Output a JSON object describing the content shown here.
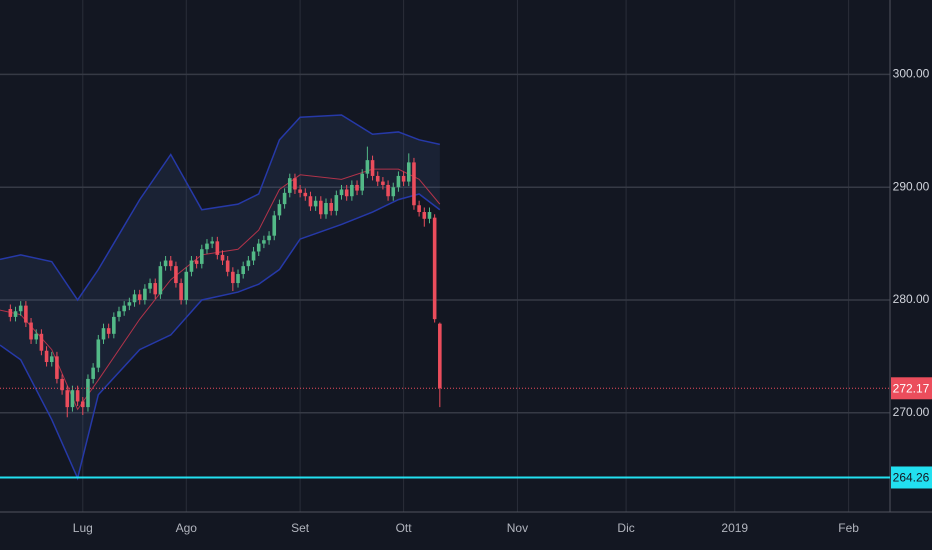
{
  "chart_data": {
    "type": "candlestick",
    "up_color": "#53b987",
    "down_color": "#eb4d5c",
    "xlim": [
      0,
      172
    ],
    "xticks": [
      {
        "value": 16,
        "label": "Lug"
      },
      {
        "value": 36,
        "label": "Ago"
      },
      {
        "value": 58,
        "label": "Set"
      },
      {
        "value": 78,
        "label": "Ott"
      },
      {
        "value": 100,
        "label": "Nov"
      },
      {
        "value": 121,
        "label": "Dic"
      },
      {
        "value": 142,
        "label": "2019"
      },
      {
        "value": 164,
        "label": "Feb"
      }
    ],
    "ylim": [
      261.2,
      306.6
    ],
    "yticks": [
      {
        "value": 270,
        "label": "270.00"
      },
      {
        "value": 280,
        "label": "280.00"
      },
      {
        "value": 290,
        "label": "290.00"
      },
      {
        "value": 300,
        "label": "300.00"
      }
    ],
    "grid": true,
    "x": [
      2,
      3,
      4,
      5,
      6,
      7,
      8,
      9,
      10,
      11,
      12,
      13,
      14,
      15,
      16,
      17,
      18,
      19,
      20,
      21,
      22,
      23,
      24,
      25,
      26,
      27,
      28,
      29,
      30,
      31,
      32,
      33,
      34,
      35,
      36,
      37,
      38,
      39,
      40,
      41,
      42,
      43,
      44,
      45,
      46,
      47,
      48,
      49,
      50,
      51,
      52,
      53,
      54,
      55,
      56,
      57,
      58,
      59,
      60,
      61,
      62,
      63,
      64,
      65,
      66,
      67,
      68,
      69,
      70,
      71,
      72,
      73,
      74,
      75,
      76,
      77,
      78,
      79,
      80,
      81,
      82,
      83,
      84,
      85
    ],
    "open": [
      279.2,
      278.5,
      279,
      279.5,
      278,
      276.5,
      277,
      275.5,
      274.5,
      275,
      273,
      272,
      270.5,
      272,
      271,
      270.5,
      273,
      274,
      276.5,
      277.5,
      277,
      278.5,
      279,
      279.5,
      279.8,
      280.5,
      280,
      281,
      281.5,
      280.5,
      283,
      283.5,
      283,
      281.5,
      280,
      282.5,
      283.5,
      283.2,
      284.5,
      285,
      285.2,
      284,
      283.5,
      282.5,
      281.5,
      282.3,
      283,
      283.5,
      284.3,
      285,
      285.3,
      285.7,
      287.5,
      288.5,
      289.5,
      290.8,
      289.8,
      289.5,
      289.2,
      288.3,
      288.8,
      287.6,
      288.6,
      287.9,
      289.3,
      289.8,
      289.2,
      290.2,
      289.7,
      291.2,
      292.4,
      291,
      290.5,
      290.2,
      289.2,
      290,
      291,
      290.5,
      292.2,
      288.4,
      287.8,
      287.2,
      287.3,
      277.9
    ],
    "high": [
      279.6,
      279.4,
      279.9,
      279.9,
      278.4,
      277.4,
      277.4,
      275.9,
      275.4,
      275.4,
      273.4,
      272.4,
      272.4,
      272.4,
      271.4,
      273.4,
      274.4,
      276.9,
      277.9,
      277.9,
      278.9,
      279.4,
      279.9,
      280.2,
      280.9,
      280.9,
      281.4,
      281.9,
      281.9,
      283.4,
      283.9,
      283.9,
      283.4,
      281.9,
      282.9,
      283.9,
      283.9,
      284.9,
      285.4,
      285.6,
      285.6,
      284.4,
      283.9,
      282.9,
      282.7,
      283.4,
      283.9,
      284.7,
      285.4,
      285.7,
      286.1,
      287.9,
      288.9,
      289.9,
      291.2,
      291.2,
      290.2,
      289.9,
      289.6,
      289.2,
      289.2,
      289,
      289,
      289.7,
      290.2,
      290.2,
      290.6,
      290.6,
      291.6,
      293.6,
      292.8,
      291.4,
      290.9,
      290.6,
      290.4,
      291.4,
      291.4,
      293,
      292.6,
      288.8,
      288.2,
      288.2,
      287.6,
      278
    ],
    "low": [
      278.1,
      278.1,
      278.6,
      277.6,
      276.1,
      276.1,
      275.1,
      274.1,
      274.1,
      272.6,
      271.6,
      269.6,
      270.1,
      270.6,
      269.8,
      270.1,
      272.6,
      273.6,
      276.1,
      276.6,
      276.6,
      278.1,
      278.6,
      279.1,
      279.4,
      279.6,
      279.6,
      280.6,
      280.1,
      280.1,
      282.6,
      282.6,
      281.1,
      279.6,
      279.6,
      282.1,
      282.8,
      282.8,
      284.1,
      284.6,
      283.6,
      283.1,
      282.1,
      280.8,
      281.1,
      281.9,
      282.6,
      283.1,
      283.9,
      284.6,
      284.9,
      285.3,
      287.1,
      288.1,
      289.1,
      289.4,
      289.1,
      288.8,
      287.9,
      287.9,
      287.2,
      287.2,
      287.5,
      287.5,
      288.9,
      288.8,
      288.8,
      289.3,
      289.3,
      290.8,
      290.6,
      290.1,
      289.8,
      288.8,
      288.8,
      289.6,
      290.1,
      290.1,
      288,
      287.4,
      286.5,
      286.8,
      278,
      270.5
    ],
    "close": [
      278.5,
      279,
      279.5,
      278,
      276.5,
      277,
      275.5,
      274.5,
      275,
      273,
      272,
      270.5,
      272,
      271,
      270.5,
      273,
      274,
      276.5,
      277.5,
      277,
      278.5,
      279,
      279.5,
      279.8,
      280.5,
      280,
      281,
      281.5,
      280.5,
      283,
      283.5,
      283,
      281.5,
      280,
      282.5,
      283.5,
      283.2,
      284.5,
      285,
      285.2,
      284,
      283.5,
      282.5,
      281.5,
      282.3,
      283,
      283.5,
      284.3,
      285,
      285.3,
      285.7,
      287.5,
      288.5,
      289.5,
      290.8,
      289.8,
      289.5,
      289.2,
      288.3,
      288.8,
      287.6,
      288.6,
      287.9,
      289.3,
      289.8,
      289.2,
      290.2,
      289.7,
      291.2,
      292.4,
      291,
      290.5,
      290.2,
      289.2,
      290,
      291,
      290.5,
      292.2,
      288.4,
      287.8,
      287.2,
      287.8,
      278.3,
      272.17
    ],
    "bands": {
      "x": [
        0,
        4,
        10,
        15,
        19,
        27,
        33,
        39,
        46,
        50,
        54,
        58,
        66,
        72,
        77,
        81,
        85
      ],
      "upper": [
        283.6,
        284.0,
        283.4,
        280.0,
        282.7,
        288.9,
        292.9,
        288.0,
        288.5,
        289.4,
        294.2,
        296.2,
        296.4,
        294.7,
        294.9,
        294.2,
        293.8
      ],
      "middle": [
        279.1,
        278.7,
        275.6,
        270.3,
        272.9,
        278.3,
        281.8,
        284.0,
        284.5,
        286.2,
        289.8,
        291.1,
        290.7,
        291.6,
        291.6,
        290.7,
        288.5
      ],
      "lower": [
        276.0,
        274.7,
        269.4,
        264.2,
        271.6,
        275.6,
        276.9,
        280.0,
        280.7,
        281.4,
        282.7,
        285.4,
        286.7,
        287.8,
        288.9,
        289.4,
        288.0
      ],
      "band_color": "#2639a8",
      "middle_color": "#b2334a",
      "fill": "rgba(60,90,140,0.18)"
    },
    "price_lines": [
      {
        "value": 272.17,
        "color": "#eb4d5c",
        "text_color": "#ffffff",
        "dashed": true
      },
      {
        "value": 264.26,
        "color": "#22e0f0",
        "text_color": "#131722",
        "dashed": false
      }
    ]
  }
}
